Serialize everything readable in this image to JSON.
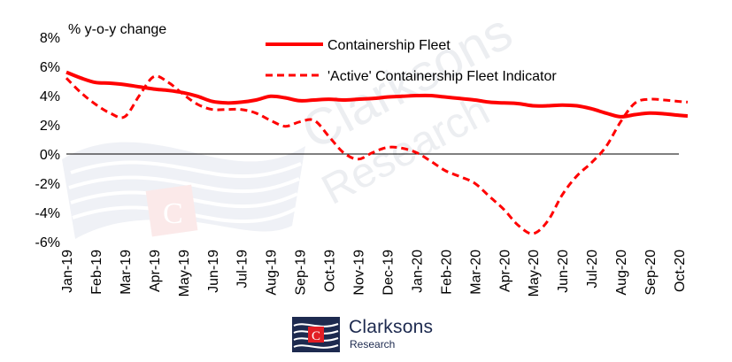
{
  "watermark": {
    "brand": "Clarksons",
    "sub": "Research",
    "emblem": "C"
  },
  "logo": {
    "name": "Clarksons",
    "sub": "Research",
    "emblem": "C"
  },
  "chart_data": {
    "type": "line",
    "ylabel": "% y-o-y change",
    "ylim": [
      -6,
      8
    ],
    "yticks": [
      8,
      6,
      4,
      2,
      0,
      -2,
      -4,
      -6
    ],
    "ytick_labels": [
      "8%",
      "6%",
      "4%",
      "2%",
      "0%",
      "-2%",
      "-4%",
      "-6%"
    ],
    "categories": [
      "Jan-19",
      "Feb-19",
      "Mar-19",
      "Apr-19",
      "May-19",
      "Jun-19",
      "Jul-19",
      "Aug-19",
      "Sep-19",
      "Oct-19",
      "Nov-19",
      "Dec-19",
      "Jan-20",
      "Feb-20",
      "Mar-20",
      "Apr-20",
      "May-20",
      "Jun-20",
      "Jul-20",
      "Aug-20",
      "Sep-20",
      "Oct-20"
    ],
    "x": [
      0,
      0.5,
      1,
      1.5,
      2,
      2.5,
      3,
      3.5,
      4,
      4.5,
      5,
      5.5,
      6,
      6.5,
      7,
      7.5,
      8,
      8.5,
      9,
      9.5,
      10,
      10.5,
      11,
      11.5,
      12,
      12.5,
      13,
      13.5,
      14,
      14.5,
      15,
      15.5,
      16,
      16.5,
      17,
      17.5,
      18,
      18.5,
      19,
      19.5,
      20,
      20.5,
      21,
      21.3
    ],
    "series": [
      {
        "name": "Containership Fleet",
        "style": "solid",
        "color": "#ff0000",
        "values": [
          5.6,
          5.2,
          4.9,
          4.85,
          4.75,
          4.6,
          4.45,
          4.35,
          4.2,
          3.95,
          3.6,
          3.5,
          3.55,
          3.7,
          3.95,
          3.85,
          3.65,
          3.7,
          3.75,
          3.7,
          3.75,
          3.8,
          3.9,
          3.95,
          4.0,
          4.0,
          3.9,
          3.8,
          3.7,
          3.55,
          3.5,
          3.45,
          3.3,
          3.3,
          3.35,
          3.3,
          3.1,
          2.8,
          2.55,
          2.7,
          2.8,
          2.75,
          2.65,
          2.6
        ]
      },
      {
        "name": "'Active' Containership Fleet Indicator",
        "style": "dashed",
        "color": "#ff0000",
        "values": [
          5.2,
          4.2,
          3.4,
          2.8,
          2.55,
          4.0,
          5.3,
          4.9,
          4.1,
          3.4,
          3.05,
          3.05,
          3.05,
          2.8,
          2.3,
          1.9,
          2.2,
          2.3,
          1.2,
          0.1,
          -0.35,
          0.1,
          0.45,
          0.4,
          0.1,
          -0.5,
          -1.15,
          -1.55,
          -2.0,
          -2.9,
          -3.8,
          -4.9,
          -5.45,
          -4.6,
          -2.8,
          -1.5,
          -0.6,
          0.5,
          2.2,
          3.5,
          3.75,
          3.7,
          3.6,
          3.55
        ]
      }
    ],
    "legend": "top-center",
    "grid": false,
    "zero_line": true
  }
}
